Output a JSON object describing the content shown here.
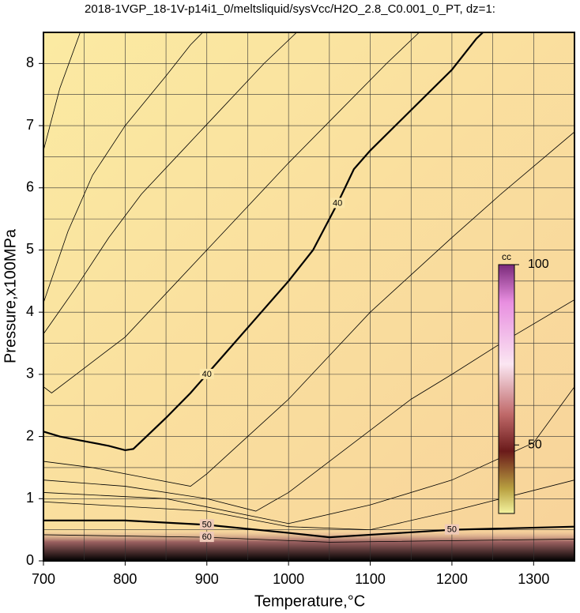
{
  "chart_data": {
    "type": "contour",
    "title": "2018-1VGP_18-1V-p14i1_0/meltsliquid/sysVcc/H2O_2.8_C0.001_0_PT, dz=1:",
    "x_label": "Temperature,°C",
    "y_label": "Pressure,x100MPa",
    "xlim": [
      700,
      1350
    ],
    "ylim": [
      0,
      8.5
    ],
    "xticks": [
      700,
      800,
      900,
      1000,
      1100,
      1200,
      1300
    ],
    "yticks": [
      0,
      1,
      2,
      3,
      4,
      5,
      6,
      7,
      8
    ],
    "xgrid": [
      750,
      800,
      850,
      900,
      950,
      1000,
      1050,
      1100,
      1150,
      1200,
      1250,
      1300
    ],
    "ygrid": [
      0.5,
      1,
      1.5,
      2,
      2.5,
      3,
      3.5,
      4,
      4.5,
      5,
      5.5,
      6,
      6.5,
      7,
      7.5,
      8
    ],
    "colorbar": {
      "label": "cc",
      "clim": [
        31,
        100
      ],
      "ticks": [
        50,
        100
      ]
    },
    "contours": [
      {
        "level": 40,
        "bold": true,
        "x": [
          700,
          720,
          740,
          780,
          800,
          810,
          830,
          850,
          880,
          900,
          930,
          960,
          1000,
          1030,
          1060,
          1080,
          1100,
          1150,
          1200,
          1230,
          1238
        ],
        "y": [
          2.08,
          2.0,
          1.95,
          1.85,
          1.78,
          1.8,
          2.05,
          2.3,
          2.7,
          3.0,
          3.45,
          3.9,
          4.5,
          5.0,
          5.75,
          6.3,
          6.6,
          7.25,
          7.9,
          8.4,
          8.5
        ]
      },
      {
        "level": 50,
        "bold": true,
        "x": [
          700,
          800,
          900,
          1000,
          1050,
          1100,
          1200,
          1350
        ],
        "y": [
          0.65,
          0.65,
          0.58,
          0.45,
          0.38,
          0.42,
          0.5,
          0.55
        ]
      },
      {
        "level": 60,
        "bold": false,
        "x": [
          700,
          900,
          1050,
          1350
        ],
        "y": [
          0.42,
          0.38,
          0.3,
          0.35
        ]
      },
      {
        "x": [
          700,
          720,
          745
        ],
        "y": [
          6.6,
          7.6,
          8.5
        ]
      },
      {
        "x": [
          700,
          730,
          760,
          800,
          850,
          880,
          895
        ],
        "y": [
          4.15,
          5.3,
          6.2,
          7.0,
          7.8,
          8.3,
          8.5
        ]
      },
      {
        "x": [
          700,
          740,
          780,
          820,
          870,
          920,
          970,
          1010
        ],
        "y": [
          3.65,
          4.4,
          5.2,
          5.9,
          6.6,
          7.3,
          8.0,
          8.5
        ]
      },
      {
        "x": [
          700,
          710,
          740,
          800,
          850,
          900,
          950,
          1000,
          1060,
          1120,
          1160
        ],
        "y": [
          2.8,
          2.7,
          3.0,
          3.6,
          4.3,
          5.0,
          5.7,
          6.4,
          7.2,
          8.0,
          8.5
        ]
      },
      {
        "x": [
          700,
          760,
          820,
          880,
          900,
          950,
          1000,
          1050,
          1100,
          1150,
          1200,
          1260,
          1350
        ],
        "y": [
          1.6,
          1.5,
          1.35,
          1.2,
          1.4,
          2.0,
          2.6,
          3.3,
          4.0,
          4.6,
          5.2,
          5.9,
          6.9
        ]
      },
      {
        "x": [
          700,
          800,
          900,
          960,
          1000,
          1050,
          1100,
          1150,
          1200,
          1260,
          1350
        ],
        "y": [
          1.3,
          1.2,
          1.0,
          0.8,
          1.1,
          1.6,
          2.1,
          2.6,
          3.0,
          3.5,
          4.2
        ]
      },
      {
        "x": [
          700,
          850,
          1000,
          1100,
          1200,
          1300,
          1350
        ],
        "y": [
          1.1,
          1.0,
          0.6,
          0.9,
          1.3,
          1.9,
          2.8
        ]
      },
      {
        "x": [
          700,
          900,
          1000,
          1100,
          1200,
          1350
        ],
        "y": [
          0.95,
          0.8,
          0.55,
          0.5,
          0.8,
          1.3
        ]
      }
    ]
  }
}
